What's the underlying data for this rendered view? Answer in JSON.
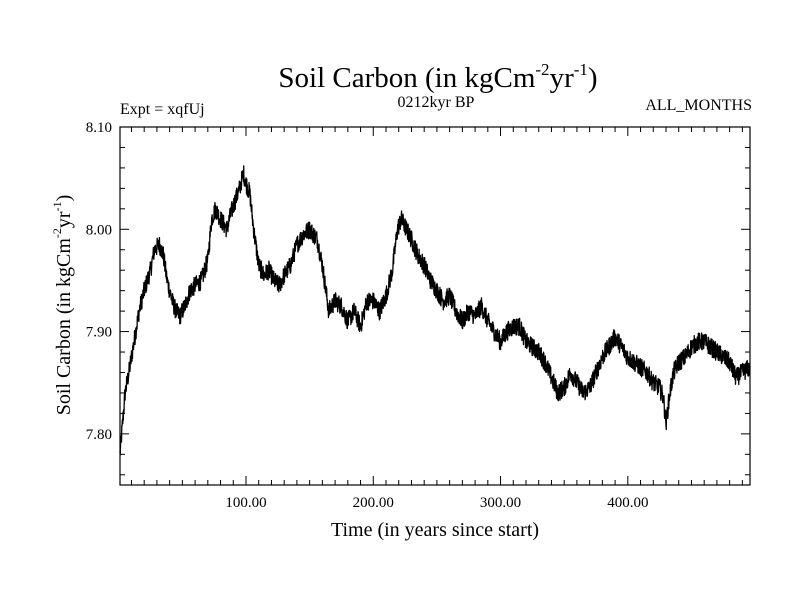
{
  "chart_data": {
    "type": "line",
    "title": "Soil Carbon (in kgCm",
    "title_sup1": "-2",
    "title_mid": "yr",
    "title_sup2": "-1",
    "title_end": ")",
    "subtitle_left": "Expt = xqfUj",
    "subtitle_center": "0212kyr BP",
    "subtitle_right": "ALL_MONTHS",
    "xlabel": "Time (in years since start)",
    "ylabel": "Soil Carbon (in kgCm",
    "ylabel_sup1": "-2",
    "ylabel_mid": "yr",
    "ylabel_sup2": "-1",
    "ylabel_end": ")",
    "xlim": [
      1,
      496
    ],
    "ylim": [
      7.75,
      8.1
    ],
    "x_ticks": [
      100,
      200,
      300,
      400
    ],
    "x_tick_labels": [
      "100.00",
      "200.00",
      "300.00",
      "400.00"
    ],
    "y_ticks": [
      7.8,
      7.9,
      8.0,
      8.1
    ],
    "y_tick_labels": [
      "7.80",
      "7.90",
      "8.00",
      "8.10"
    ],
    "x_minor_step": 10,
    "y_minor_step": 0.02,
    "line_color": "#000000",
    "series": [
      {
        "name": "Soil Carbon",
        "x": [
          1,
          3,
          5,
          8,
          12,
          16,
          20,
          25,
          28,
          32,
          35,
          38,
          42,
          45,
          48,
          52,
          56,
          60,
          65,
          70,
          73,
          76,
          80,
          85,
          88,
          92,
          95,
          98,
          100,
          103,
          106,
          110,
          114,
          118,
          122,
          126,
          130,
          135,
          140,
          145,
          150,
          153,
          156,
          160,
          165,
          170,
          175,
          180,
          185,
          190,
          195,
          200,
          205,
          210,
          215,
          219,
          222,
          226,
          230,
          235,
          240,
          245,
          250,
          255,
          260,
          265,
          270,
          275,
          280,
          285,
          290,
          295,
          300,
          305,
          310,
          315,
          320,
          325,
          330,
          335,
          340,
          345,
          350,
          355,
          360,
          365,
          370,
          375,
          380,
          385,
          390,
          395,
          400,
          405,
          410,
          415,
          420,
          425,
          428,
          430,
          433,
          436,
          440,
          445,
          450,
          455,
          460,
          465,
          470,
          475,
          480,
          485,
          490,
          496
        ],
        "y": [
          7.78,
          7.81,
          7.84,
          7.86,
          7.89,
          7.92,
          7.94,
          7.96,
          7.98,
          7.985,
          7.975,
          7.95,
          7.93,
          7.92,
          7.915,
          7.925,
          7.94,
          7.945,
          7.95,
          7.97,
          8.01,
          8.02,
          8.01,
          8.0,
          8.015,
          8.03,
          8.04,
          8.055,
          8.045,
          8.035,
          8.0,
          7.965,
          7.955,
          7.96,
          7.95,
          7.945,
          7.955,
          7.965,
          7.985,
          7.995,
          8.0,
          7.995,
          7.99,
          7.965,
          7.92,
          7.93,
          7.925,
          7.91,
          7.92,
          7.905,
          7.93,
          7.93,
          7.92,
          7.935,
          7.96,
          8.0,
          8.01,
          8.0,
          7.99,
          7.975,
          7.965,
          7.95,
          7.94,
          7.93,
          7.935,
          7.92,
          7.91,
          7.92,
          7.915,
          7.925,
          7.91,
          7.9,
          7.89,
          7.9,
          7.905,
          7.905,
          7.89,
          7.885,
          7.88,
          7.87,
          7.855,
          7.84,
          7.845,
          7.86,
          7.85,
          7.84,
          7.845,
          7.86,
          7.875,
          7.885,
          7.895,
          7.885,
          7.875,
          7.87,
          7.865,
          7.86,
          7.85,
          7.845,
          7.835,
          7.81,
          7.84,
          7.86,
          7.87,
          7.875,
          7.885,
          7.89,
          7.89,
          7.885,
          7.88,
          7.875,
          7.87,
          7.855,
          7.86,
          7.865
        ]
      }
    ]
  }
}
